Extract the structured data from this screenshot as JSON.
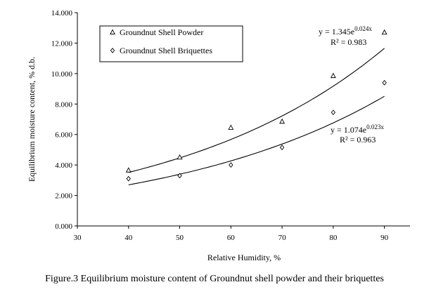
{
  "chart_data": {
    "type": "scatter",
    "xlabel": "Relative Humidity, %",
    "ylabel": "Equilibrium moisture content, % d.b.",
    "xlim": [
      30,
      95
    ],
    "ylim": [
      0,
      14
    ],
    "x_ticks": [
      "30",
      "40",
      "50",
      "60",
      "70",
      "80",
      "90"
    ],
    "y_ticks": [
      "0.000",
      "2.000",
      "4.000",
      "6.000",
      "8.000",
      "10.000",
      "12.000",
      "14.000"
    ],
    "grid": false,
    "legend_position": "top-left",
    "series": [
      {
        "name": "Groundnut Shell Powder",
        "marker": "triangle",
        "x": [
          40,
          50,
          60,
          70,
          80,
          90
        ],
        "y": [
          3.65,
          4.5,
          6.45,
          6.85,
          9.85,
          12.7
        ],
        "trend": {
          "a": 1.345,
          "b": 0.024,
          "from": 40,
          "to": 90
        },
        "equation": {
          "prefix": "y = 1.345e",
          "exponent": "0.024x",
          "r2": "R² = 0.983"
        }
      },
      {
        "name": "Groundnut Shell Briquettes",
        "marker": "diamond",
        "x": [
          40,
          50,
          60,
          70,
          80,
          90
        ],
        "y": [
          3.1,
          3.3,
          4.0,
          5.15,
          7.45,
          9.4
        ],
        "trend": {
          "a": 1.074,
          "b": 0.023,
          "from": 40,
          "to": 90
        },
        "equation": {
          "prefix": "y = 1.074e",
          "exponent": "0.023x",
          "r2": "R² = 0.963"
        }
      }
    ]
  },
  "caption": "Figure.3 Equilibrium moisture content of Groundnut shell powder and their briquettes"
}
